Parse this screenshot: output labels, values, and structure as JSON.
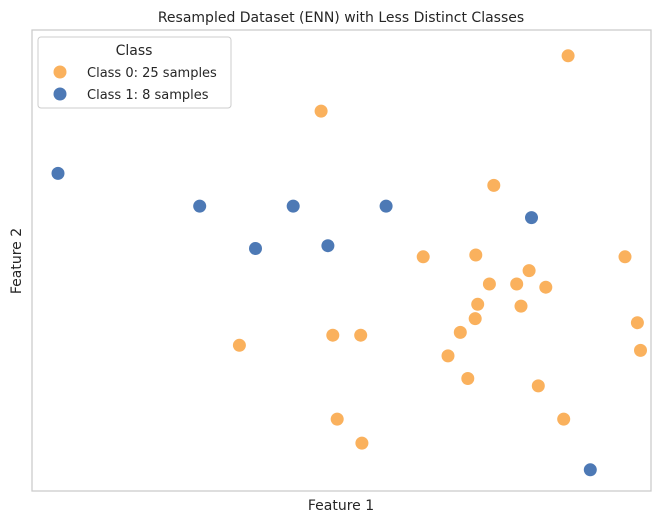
{
  "chart_data": {
    "type": "scatter",
    "title": "Resampled Dataset (ENN) with Less Distinct Classes",
    "xlabel": "Feature 1",
    "ylabel": "Feature 2",
    "xlim": [
      0,
      100
    ],
    "ylim": [
      0,
      100
    ],
    "grid": false,
    "legend": {
      "title": "Class",
      "placement": "top-left"
    },
    "series": [
      {
        "name": "Class 0: 25 samples",
        "color": "#F9A94B",
        "points": [
          [
            86.6,
            94.4
          ],
          [
            46.7,
            82.4
          ],
          [
            74.6,
            66.3
          ],
          [
            63.2,
            50.8
          ],
          [
            71.7,
            51.2
          ],
          [
            78.3,
            44.9
          ],
          [
            73.9,
            44.9
          ],
          [
            80.3,
            47.8
          ],
          [
            83.0,
            44.2
          ],
          [
            95.8,
            50.8
          ],
          [
            72.0,
            40.5
          ],
          [
            79.0,
            40.1
          ],
          [
            71.6,
            37.4
          ],
          [
            69.2,
            34.4
          ],
          [
            97.8,
            36.5
          ],
          [
            33.5,
            31.6
          ],
          [
            48.6,
            33.8
          ],
          [
            53.1,
            33.8
          ],
          [
            67.2,
            29.3
          ],
          [
            98.3,
            30.5
          ],
          [
            70.4,
            24.4
          ],
          [
            81.8,
            22.8
          ],
          [
            49.3,
            15.6
          ],
          [
            85.9,
            15.6
          ],
          [
            53.3,
            10.4
          ]
        ]
      },
      {
        "name": "Class 1: 8 samples",
        "color": "#3A6AAD",
        "points": [
          [
            4.2,
            68.9
          ],
          [
            27.1,
            61.8
          ],
          [
            42.2,
            61.8
          ],
          [
            57.2,
            61.8
          ],
          [
            80.7,
            59.3
          ],
          [
            36.1,
            52.6
          ],
          [
            47.8,
            53.2
          ],
          [
            90.2,
            4.6
          ]
        ]
      }
    ]
  }
}
